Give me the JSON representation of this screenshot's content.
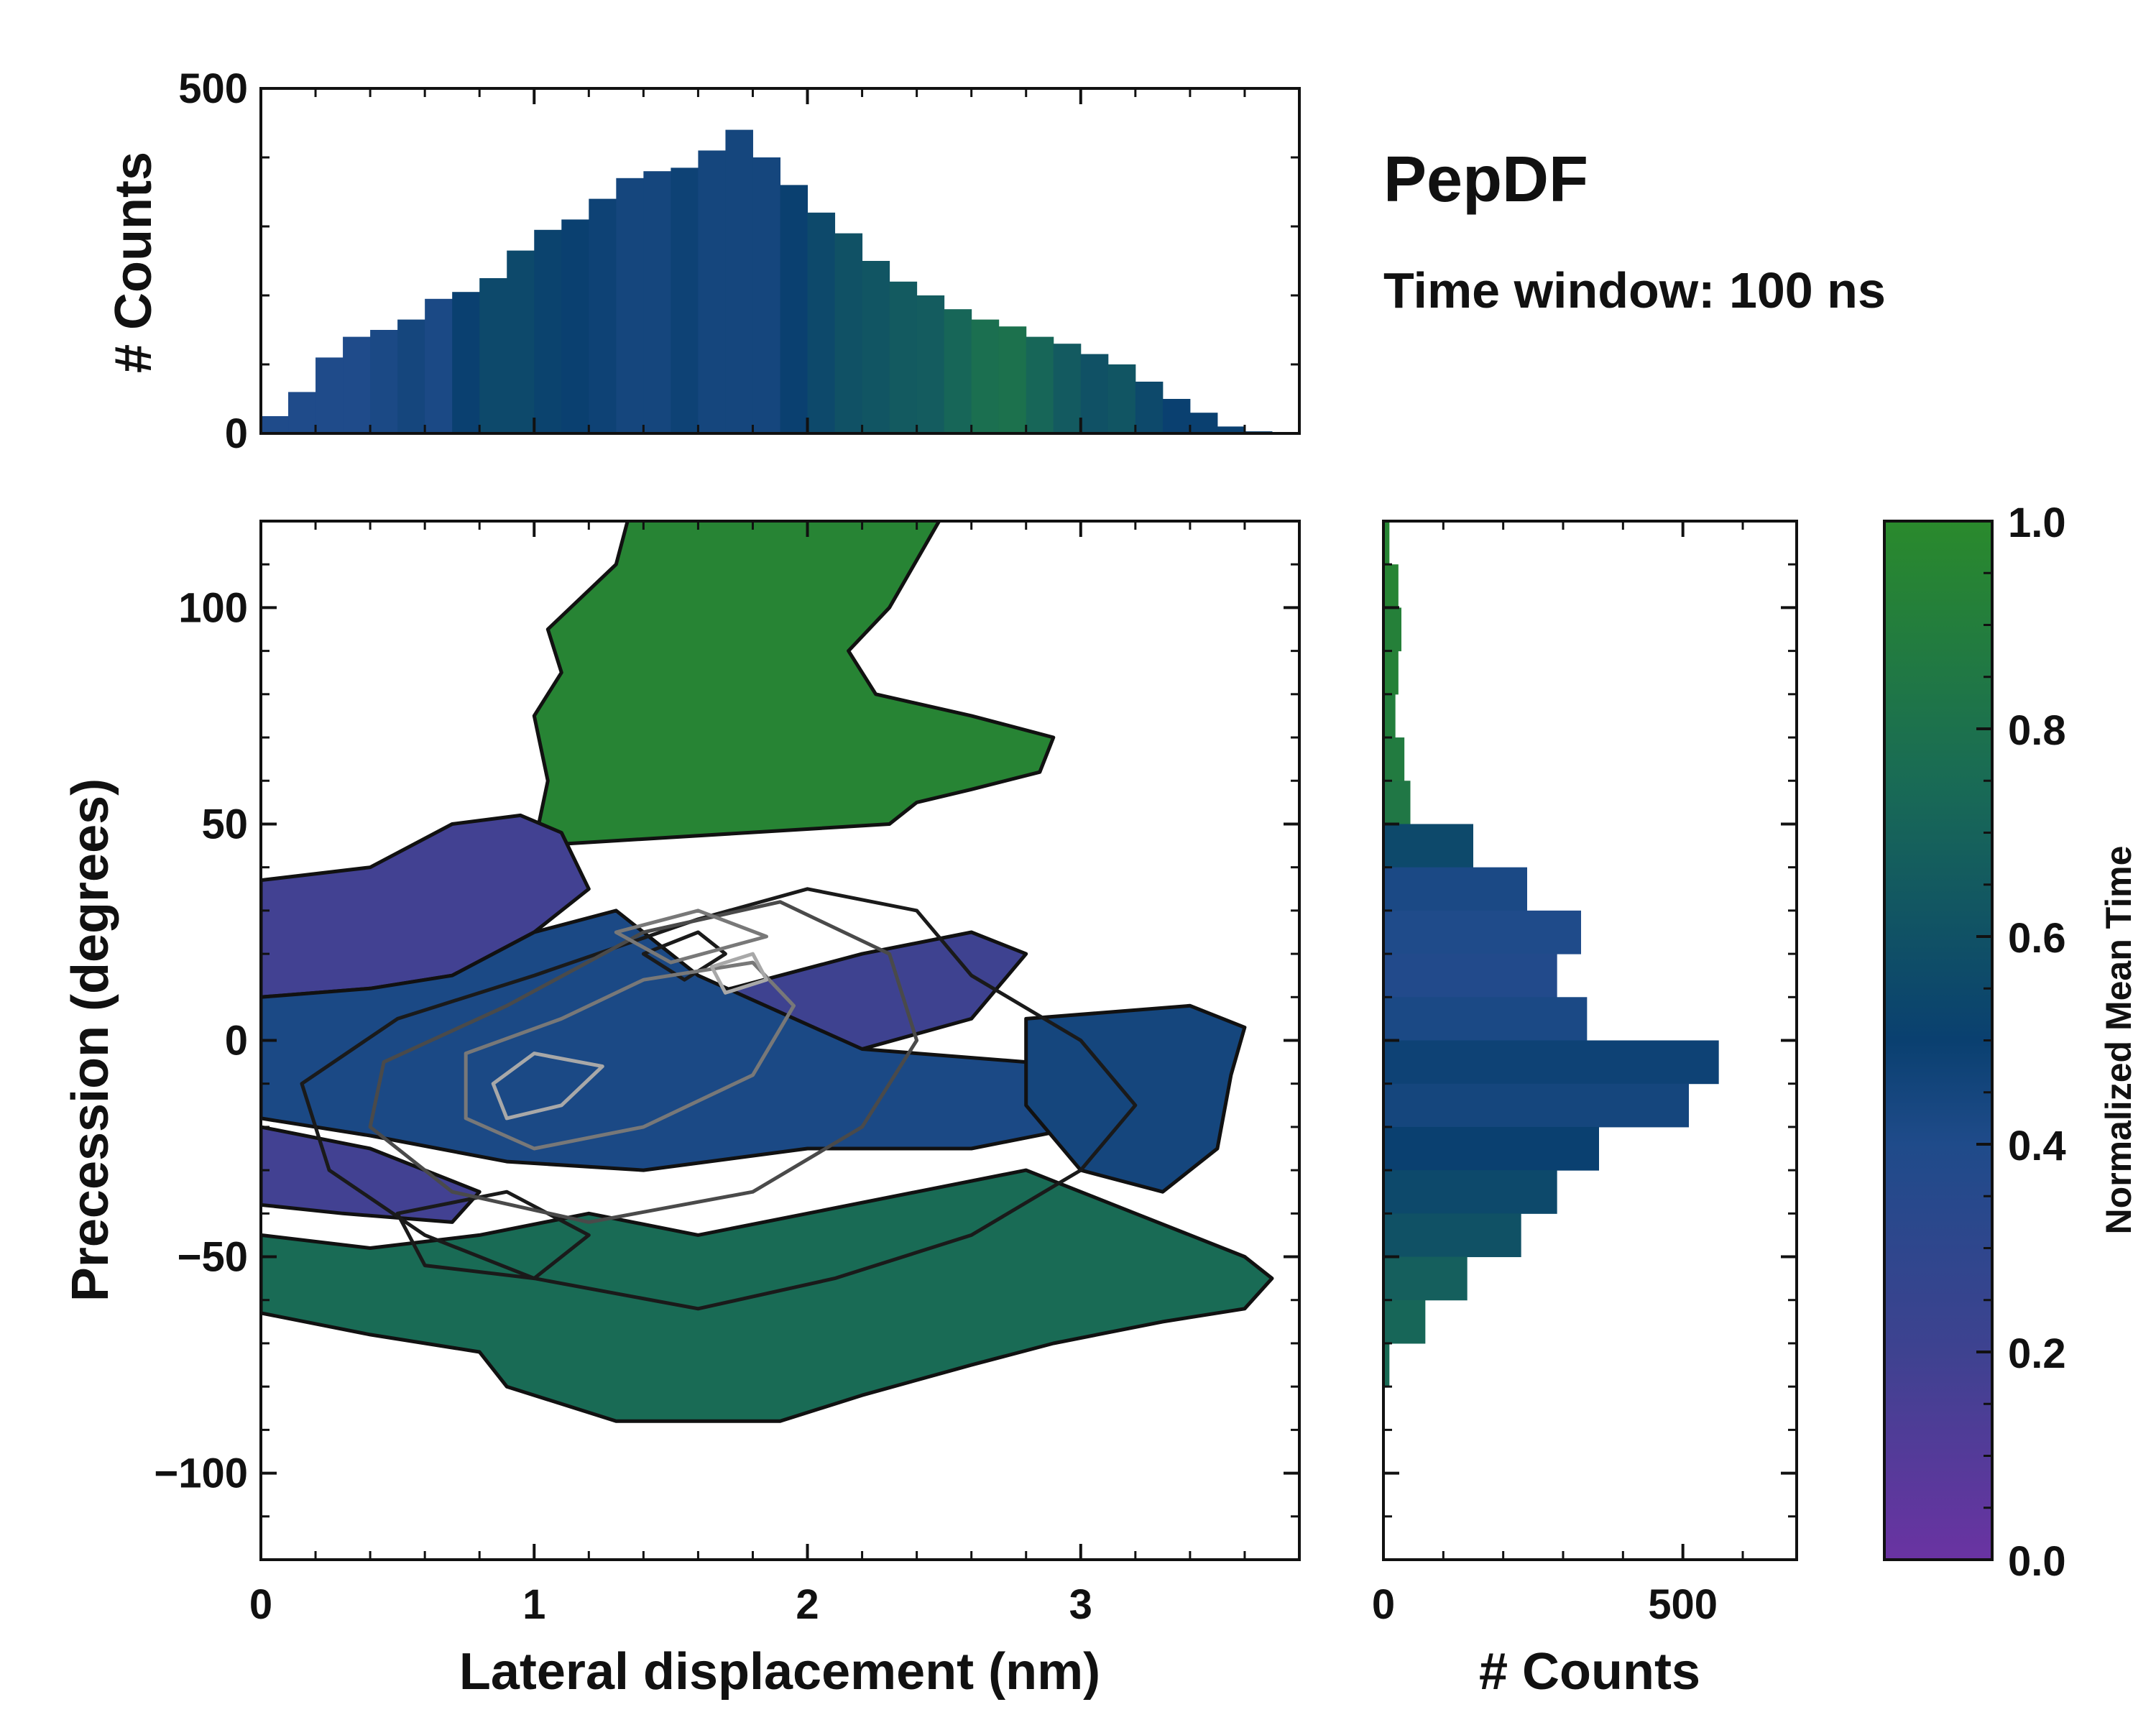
{
  "title": "PepDF",
  "subtitle": "Time window: 100 ns",
  "chart_data": [
    {
      "panel": "top-marginal",
      "type": "bar",
      "ylabel": "# Counts",
      "xlim": [
        0,
        3.8
      ],
      "ylim": [
        0,
        500
      ],
      "yticks": [
        0,
        500
      ],
      "bin_centers": [
        0.05,
        0.15,
        0.25,
        0.35,
        0.45,
        0.55,
        0.65,
        0.75,
        0.85,
        0.95,
        1.05,
        1.15,
        1.25,
        1.35,
        1.45,
        1.55,
        1.65,
        1.75,
        1.85,
        1.95,
        2.05,
        2.15,
        2.25,
        2.35,
        2.45,
        2.55,
        2.65,
        2.75,
        2.85,
        2.95,
        3.05,
        3.15,
        3.25,
        3.35,
        3.45,
        3.55,
        3.65,
        3.75
      ],
      "counts": [
        25,
        60,
        110,
        140,
        150,
        165,
        195,
        205,
        225,
        265,
        295,
        310,
        340,
        370,
        380,
        385,
        410,
        440,
        400,
        360,
        320,
        290,
        250,
        220,
        200,
        180,
        165,
        155,
        140,
        130,
        115,
        100,
        75,
        50,
        30,
        10,
        3,
        0
      ],
      "mean_time": [
        0.4,
        0.4,
        0.4,
        0.4,
        0.42,
        0.45,
        0.42,
        0.5,
        0.55,
        0.55,
        0.52,
        0.5,
        0.48,
        0.45,
        0.45,
        0.48,
        0.45,
        0.45,
        0.45,
        0.5,
        0.55,
        0.6,
        0.62,
        0.65,
        0.66,
        0.72,
        0.78,
        0.8,
        0.72,
        0.65,
        0.6,
        0.62,
        0.55,
        0.5,
        0.5,
        0.5,
        0.5,
        0.5
      ]
    },
    {
      "panel": "main-2d-histogram",
      "type": "heatmap",
      "xlabel": "Lateral displacement (nm)",
      "ylabel": "Precession (degrees)",
      "xlim": [
        0,
        3.8
      ],
      "ylim": [
        -120,
        120
      ],
      "xticks": [
        0,
        1,
        2,
        3
      ],
      "yticks": [
        -100,
        -50,
        0,
        50,
        100
      ],
      "regions": [
        {
          "name": "upper-green",
          "mean_time": 0.95,
          "outline": [
            [
              1.0,
              45
            ],
            [
              1.05,
              60
            ],
            [
              1.0,
              75
            ],
            [
              1.1,
              85
            ],
            [
              1.05,
              95
            ],
            [
              1.3,
              110
            ],
            [
              1.35,
              122
            ],
            [
              2.5,
              122
            ],
            [
              2.3,
              100
            ],
            [
              2.15,
              90
            ],
            [
              2.25,
              80
            ],
            [
              2.6,
              75
            ],
            [
              2.9,
              70
            ],
            [
              2.85,
              62
            ],
            [
              2.6,
              58
            ],
            [
              2.4,
              55
            ],
            [
              2.3,
              50
            ]
          ]
        },
        {
          "name": "left-purple",
          "mean_time": 0.18,
          "outline": [
            [
              0,
              37
            ],
            [
              0.4,
              40
            ],
            [
              0.7,
              50
            ],
            [
              0.95,
              52
            ],
            [
              1.1,
              48
            ],
            [
              1.2,
              35
            ],
            [
              1.0,
              25
            ],
            [
              0.7,
              15
            ],
            [
              0.4,
              12
            ],
            [
              0,
              10
            ]
          ]
        },
        {
          "name": "center-purple",
          "mean_time": 0.2,
          "outline": [
            [
              1.6,
              10
            ],
            [
              2.2,
              20
            ],
            [
              2.6,
              25
            ],
            [
              2.8,
              20
            ],
            [
              2.6,
              5
            ],
            [
              2.2,
              -2
            ],
            [
              1.8,
              2
            ]
          ]
        },
        {
          "name": "lower-left-purple",
          "mean_time": 0.18,
          "outline": [
            [
              0,
              -20
            ],
            [
              0.4,
              -25
            ],
            [
              0.8,
              -35
            ],
            [
              0.7,
              -42
            ],
            [
              0.3,
              -40
            ],
            [
              0,
              -38
            ]
          ]
        },
        {
          "name": "center-blue",
          "mean_time": 0.42,
          "outline": [
            [
              0,
              10
            ],
            [
              0.4,
              12
            ],
            [
              0.7,
              15
            ],
            [
              1.0,
              25
            ],
            [
              1.3,
              30
            ],
            [
              1.6,
              15
            ],
            [
              2.2,
              -2
            ],
            [
              2.8,
              -5
            ],
            [
              3.2,
              -10
            ],
            [
              3.0,
              -20
            ],
            [
              2.6,
              -25
            ],
            [
              2.0,
              -25
            ],
            [
              1.4,
              -30
            ],
            [
              0.9,
              -28
            ],
            [
              0.4,
              -22
            ],
            [
              0,
              -18
            ]
          ]
        },
        {
          "name": "right-blue",
          "mean_time": 0.45,
          "outline": [
            [
              2.8,
              5
            ],
            [
              3.4,
              8
            ],
            [
              3.6,
              3
            ],
            [
              3.55,
              -8
            ],
            [
              3.5,
              -25
            ],
            [
              3.3,
              -35
            ],
            [
              3.0,
              -30
            ],
            [
              2.8,
              -15
            ]
          ]
        },
        {
          "name": "lower-green",
          "mean_time": 0.75,
          "outline": [
            [
              0,
              -45
            ],
            [
              0.4,
              -48
            ],
            [
              0.8,
              -45
            ],
            [
              1.2,
              -40
            ],
            [
              1.6,
              -45
            ],
            [
              2.0,
              -40
            ],
            [
              2.4,
              -35
            ],
            [
              2.8,
              -30
            ],
            [
              3.2,
              -40
            ],
            [
              3.6,
              -50
            ],
            [
              3.7,
              -55
            ],
            [
              3.6,
              -62
            ],
            [
              3.3,
              -65
            ],
            [
              2.9,
              -70
            ],
            [
              2.6,
              -75
            ],
            [
              2.2,
              -82
            ],
            [
              1.9,
              -88
            ],
            [
              1.3,
              -88
            ],
            [
              0.9,
              -80
            ],
            [
              0.8,
              -72
            ],
            [
              0.4,
              -68
            ],
            [
              0,
              -63
            ]
          ]
        }
      ],
      "contour_levels": [
        {
          "level": 1,
          "color": "#1a1a1a",
          "rings": [
            [
              [
                0.15,
                -10
              ],
              [
                0.5,
                5
              ],
              [
                1.0,
                15
              ],
              [
                1.6,
                28
              ],
              [
                2.0,
                35
              ],
              [
                2.4,
                30
              ],
              [
                2.6,
                15
              ],
              [
                3.0,
                0
              ],
              [
                3.2,
                -15
              ],
              [
                3.0,
                -30
              ],
              [
                2.6,
                -45
              ],
              [
                2.1,
                -55
              ],
              [
                1.6,
                -62
              ],
              [
                1.0,
                -55
              ],
              [
                0.6,
                -45
              ],
              [
                0.25,
                -30
              ]
            ],
            [
              [
                0.5,
                -40
              ],
              [
                0.9,
                -35
              ],
              [
                1.2,
                -45
              ],
              [
                1.0,
                -55
              ],
              [
                0.6,
                -52
              ]
            ],
            [
              [
                1.4,
                20
              ],
              [
                1.6,
                25
              ],
              [
                1.7,
                20
              ],
              [
                1.55,
                14
              ]
            ]
          ]
        },
        {
          "level": 2,
          "color": "#4a4a4a",
          "rings": [
            [
              [
                0.45,
                -5
              ],
              [
                0.9,
                8
              ],
              [
                1.4,
                25
              ],
              [
                1.9,
                32
              ],
              [
                2.3,
                20
              ],
              [
                2.4,
                0
              ],
              [
                2.2,
                -20
              ],
              [
                1.8,
                -35
              ],
              [
                1.2,
                -42
              ],
              [
                0.7,
                -35
              ],
              [
                0.4,
                -20
              ]
            ]
          ]
        },
        {
          "level": 3,
          "color": "#787878",
          "rings": [
            [
              [
                0.75,
                -3
              ],
              [
                1.1,
                5
              ],
              [
                1.4,
                14
              ],
              [
                1.8,
                18
              ],
              [
                1.95,
                8
              ],
              [
                1.8,
                -8
              ],
              [
                1.4,
                -20
              ],
              [
                1.0,
                -25
              ],
              [
                0.75,
                -18
              ]
            ],
            [
              [
                1.3,
                25
              ],
              [
                1.6,
                30
              ],
              [
                1.85,
                24
              ],
              [
                1.5,
                18
              ]
            ]
          ]
        },
        {
          "level": 4,
          "color": "#a8a8a8",
          "rings": [
            [
              [
                0.85,
                -10
              ],
              [
                1.0,
                -3
              ],
              [
                1.25,
                -6
              ],
              [
                1.1,
                -15
              ],
              [
                0.9,
                -18
              ]
            ],
            [
              [
                1.65,
                17
              ],
              [
                1.8,
                20
              ],
              [
                1.85,
                14
              ],
              [
                1.7,
                11
              ]
            ]
          ]
        }
      ]
    },
    {
      "panel": "right-marginal",
      "type": "bar",
      "orientation": "horizontal",
      "xlabel": "# Counts",
      "xlim": [
        0,
        690
      ],
      "xticks": [
        0,
        500
      ],
      "bin_centers": [
        115,
        105,
        95,
        85,
        75,
        65,
        55,
        45,
        35,
        25,
        15,
        5,
        -5,
        -15,
        -25,
        -35,
        -45,
        -55,
        -65,
        -75,
        -85,
        -95
      ],
      "counts": [
        10,
        25,
        30,
        25,
        20,
        35,
        45,
        150,
        240,
        330,
        290,
        340,
        560,
        510,
        360,
        290,
        230,
        140,
        70,
        10,
        0,
        0
      ],
      "mean_time": [
        0.95,
        0.95,
        0.92,
        0.93,
        0.9,
        0.88,
        0.85,
        0.55,
        0.42,
        0.4,
        0.38,
        0.42,
        0.48,
        0.45,
        0.5,
        0.55,
        0.6,
        0.68,
        0.72,
        0.75,
        0.75,
        0.75
      ]
    },
    {
      "panel": "colorbar",
      "label": "Normalized Mean Time",
      "range": [
        0.0,
        1.0
      ],
      "ticks": [
        "0.0",
        "0.2",
        "0.4",
        "0.6",
        "0.8",
        "1.0"
      ],
      "colors": [
        "#6a33a2",
        "#3e4290",
        "#1f4b8a",
        "#0a4070",
        "#196b55",
        "#2a8a2c"
      ]
    }
  ]
}
